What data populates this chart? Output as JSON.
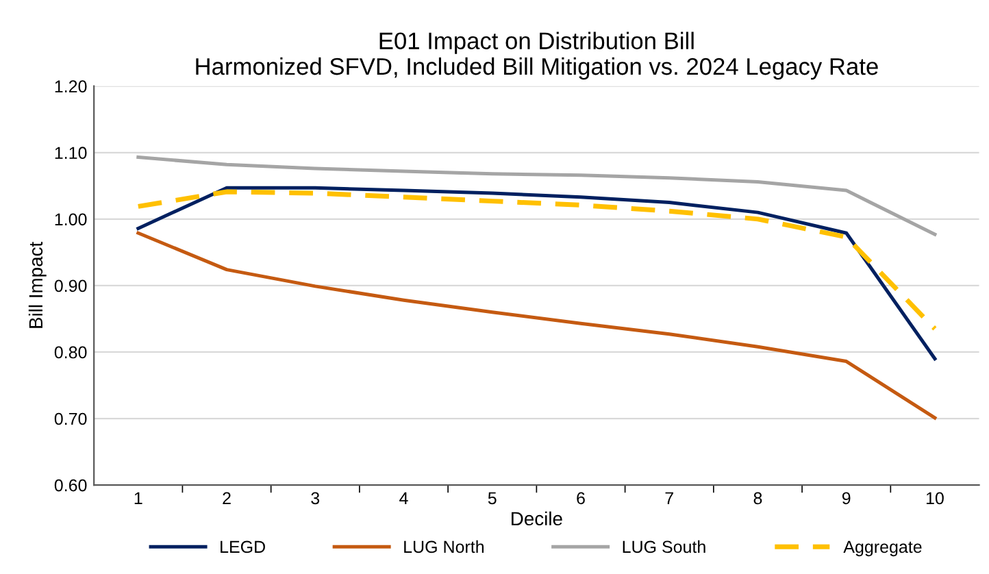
{
  "chart_data": {
    "type": "line",
    "title": "E01 Impact on Distribution Bill\nHarmonized SFVD, Included Bill Mitigation vs. 2024 Legacy Rate",
    "xlabel": "Decile",
    "ylabel": "Bill Impact",
    "categories": [
      "1",
      "2",
      "3",
      "4",
      "5",
      "6",
      "7",
      "8",
      "9",
      "10"
    ],
    "series": [
      {
        "name": "LEGD",
        "color": "#002060",
        "values": [
          0.986,
          1.047,
          1.047,
          1.043,
          1.039,
          1.033,
          1.025,
          1.01,
          0.979,
          0.79
        ]
      },
      {
        "name": "LUG North",
        "color": "#c55a11",
        "values": [
          0.979,
          0.924,
          0.899,
          0.878,
          0.86,
          0.843,
          0.827,
          0.808,
          0.786,
          0.701
        ]
      },
      {
        "name": "LUG South",
        "color": "#a5a5a5",
        "values": [
          1.093,
          1.082,
          1.076,
          1.072,
          1.068,
          1.066,
          1.062,
          1.056,
          1.043,
          0.977
        ]
      },
      {
        "name": "Aggregate",
        "color": "#ffc000",
        "line_style": "dashed",
        "values": [
          1.019,
          1.041,
          1.039,
          1.033,
          1.027,
          1.021,
          1.012,
          1.0,
          0.973,
          0.835
        ]
      }
    ],
    "ylim": [
      0.6,
      1.2
    ],
    "yticks": [
      {
        "value": 0.6,
        "label": "0.60"
      },
      {
        "value": 0.7,
        "label": "0.70"
      },
      {
        "value": 0.8,
        "label": "0.80"
      },
      {
        "value": 0.9,
        "label": "0.90"
      },
      {
        "value": 1.0,
        "label": "1.00"
      },
      {
        "value": 1.1,
        "label": "1.10"
      },
      {
        "value": 1.2,
        "label": "1.20"
      }
    ],
    "grid": "y",
    "legend": "bottom",
    "marker": "none"
  }
}
